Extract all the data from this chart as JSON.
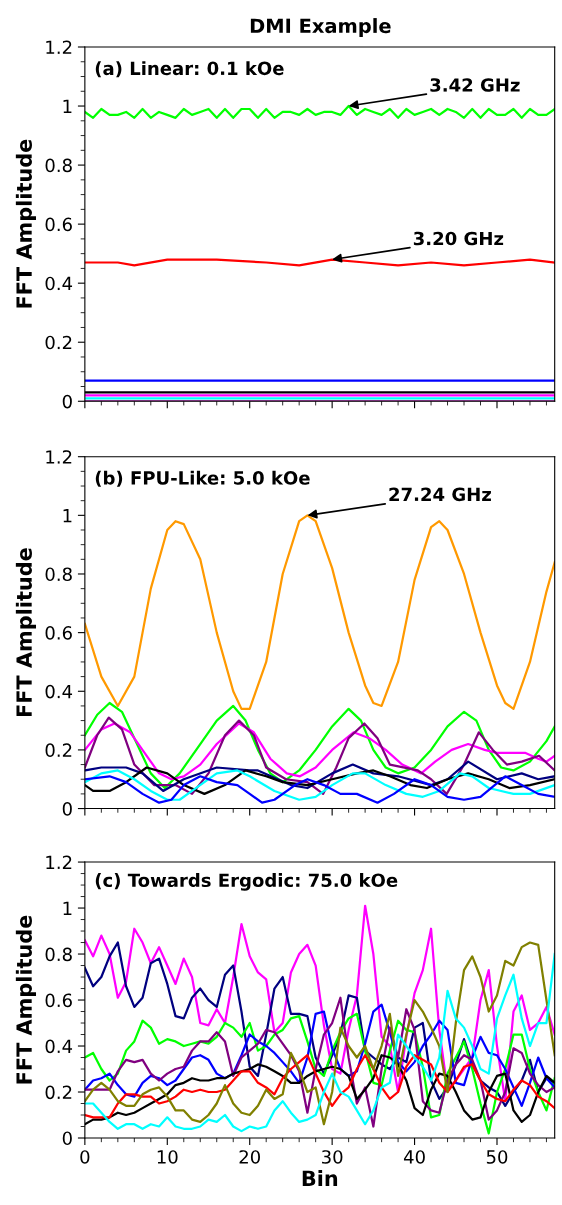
{
  "chart_data": [
    {
      "type": "line",
      "title": "DMI Example",
      "subtitle": "(a) Linear: 0.1 kOe",
      "ylabel": "FFT Amplitude",
      "xlim": [
        0,
        57
      ],
      "xticks": [
        0,
        10,
        20,
        30,
        40,
        50
      ],
      "ylim": [
        0,
        1.2
      ],
      "yticks": [
        0,
        0.2,
        0.4,
        0.6,
        0.8,
        1,
        1.2
      ],
      "tick_labels": "y",
      "grid": false,
      "legend": false,
      "annotations": [
        {
          "text": "3.42 GHz",
          "x": 32,
          "y": 1.0
        },
        {
          "text": "3.20 GHz",
          "x": 30,
          "y": 0.48
        }
      ],
      "series": [
        {
          "color": "#00ff00",
          "x": [
            0,
            1,
            2,
            3,
            4,
            5,
            6,
            7,
            8,
            9,
            10,
            11,
            12,
            13,
            14,
            15,
            16,
            17,
            18,
            19,
            20,
            21,
            22,
            23,
            24,
            25,
            26,
            27,
            28,
            29,
            30,
            31,
            32,
            33,
            34,
            35,
            36,
            37,
            38,
            39,
            40,
            41,
            42,
            43,
            44,
            45,
            46,
            47,
            48,
            49,
            50,
            51,
            52,
            53,
            54,
            55,
            56,
            57
          ],
          "values": [
            0.98,
            0.96,
            0.99,
            0.97,
            0.97,
            0.98,
            0.96,
            0.99,
            0.96,
            0.98,
            0.97,
            0.96,
            0.99,
            0.97,
            0.98,
            0.99,
            0.96,
            0.99,
            0.96,
            0.99,
            0.99,
            0.96,
            0.99,
            0.96,
            0.98,
            0.98,
            0.97,
            0.99,
            0.97,
            0.98,
            0.98,
            0.97,
            1.0,
            0.97,
            0.99,
            0.98,
            0.97,
            0.99,
            0.96,
            0.99,
            0.97,
            0.98,
            0.99,
            0.97,
            0.99,
            0.98,
            0.96,
            0.99,
            0.96,
            0.99,
            0.97,
            0.97,
            0.99,
            0.96,
            0.99,
            0.97,
            0.97,
            0.99
          ]
        },
        {
          "color": "#ff0000",
          "x": [
            0,
            4,
            6,
            10,
            16,
            22,
            26,
            30,
            34,
            38,
            42,
            46,
            50,
            54,
            57
          ],
          "values": [
            0.47,
            0.47,
            0.46,
            0.48,
            0.48,
            0.47,
            0.46,
            0.48,
            0.47,
            0.46,
            0.47,
            0.46,
            0.47,
            0.48,
            0.47
          ]
        },
        {
          "color": "#0000ff",
          "x": [
            0,
            57
          ],
          "values": [
            0.07,
            0.07
          ]
        },
        {
          "color": "#000000",
          "x": [
            0,
            57
          ],
          "values": [
            0.03,
            0.03
          ]
        },
        {
          "color": "#ff00ff",
          "x": [
            0,
            57
          ],
          "values": [
            0.02,
            0.02
          ]
        },
        {
          "color": "#00ffff",
          "x": [
            0,
            57
          ],
          "values": [
            0.01,
            0.01
          ]
        },
        {
          "color": "#800080",
          "x": [
            0,
            57
          ],
          "values": [
            0.0,
            0.0
          ]
        }
      ]
    },
    {
      "type": "line",
      "subtitle": "(b) FPU-Like: 5.0 kOe",
      "ylabel": "FFT Amplitude",
      "xlim": [
        0,
        57
      ],
      "xticks": [
        0,
        10,
        20,
        30,
        40,
        50
      ],
      "ylim": [
        0,
        1.2
      ],
      "yticks": [
        0,
        0.2,
        0.4,
        0.6,
        0.8,
        1,
        1.2
      ],
      "tick_labels": "y",
      "grid": false,
      "legend": false,
      "annotations": [
        {
          "text": "27.24 GHz",
          "x": 27,
          "y": 1.0
        }
      ],
      "series": [
        {
          "color": "#ff9900",
          "x": [
            0,
            2,
            4,
            6,
            8,
            10,
            11,
            12,
            14,
            16,
            18,
            19,
            20,
            22,
            24,
            26,
            27,
            28,
            30,
            32,
            34,
            35,
            36,
            38,
            40,
            42,
            43,
            44,
            46,
            48,
            50,
            51,
            52,
            54,
            56,
            57
          ],
          "values": [
            0.63,
            0.45,
            0.35,
            0.45,
            0.75,
            0.95,
            0.98,
            0.97,
            0.85,
            0.6,
            0.4,
            0.34,
            0.34,
            0.5,
            0.8,
            0.98,
            1.0,
            0.98,
            0.82,
            0.6,
            0.42,
            0.36,
            0.35,
            0.5,
            0.78,
            0.96,
            0.98,
            0.95,
            0.8,
            0.6,
            0.42,
            0.36,
            0.34,
            0.5,
            0.74,
            0.84
          ]
        },
        {
          "color": "#00ff00",
          "x": [
            0,
            1.5,
            3,
            4.5,
            6,
            8,
            9.7,
            11.5,
            14,
            16,
            18,
            19.5,
            21,
            22.5,
            24,
            26,
            28,
            30,
            32,
            33.5,
            35,
            36.5,
            38,
            40,
            42,
            44,
            46,
            47.5,
            49,
            50.5,
            52,
            54,
            56,
            57
          ],
          "values": [
            0.25,
            0.32,
            0.36,
            0.33,
            0.24,
            0.12,
            0.07,
            0.12,
            0.22,
            0.3,
            0.35,
            0.3,
            0.2,
            0.12,
            0.09,
            0.13,
            0.2,
            0.28,
            0.34,
            0.3,
            0.2,
            0.14,
            0.12,
            0.14,
            0.2,
            0.28,
            0.33,
            0.3,
            0.2,
            0.14,
            0.13,
            0.16,
            0.23,
            0.28
          ]
        },
        {
          "color": "#ff00ff",
          "x": [
            0,
            2,
            3.6,
            5.5,
            7.5,
            9,
            10.5,
            12,
            14,
            16,
            18.7,
            20.5,
            22.5,
            24.5,
            26.1,
            28,
            30,
            32.6,
            34.5,
            36.5,
            38.5,
            40.8,
            42.5,
            44.5,
            46.5,
            48.5,
            50,
            52,
            53.4,
            55,
            56,
            57
          ],
          "values": [
            0.2,
            0.27,
            0.29,
            0.26,
            0.18,
            0.12,
            0.1,
            0.11,
            0.15,
            0.22,
            0.29,
            0.26,
            0.17,
            0.12,
            0.11,
            0.14,
            0.2,
            0.26,
            0.24,
            0.2,
            0.15,
            0.12,
            0.16,
            0.2,
            0.22,
            0.2,
            0.19,
            0.19,
            0.19,
            0.17,
            0.16,
            0.18
          ]
        },
        {
          "color": "#800080",
          "x": [
            0,
            1.5,
            2.9,
            4.5,
            6,
            8.4,
            11,
            13,
            15,
            17,
            18.7,
            20.5,
            22,
            24.4,
            27,
            28.9,
            30.5,
            32,
            33.9,
            35.5,
            37,
            40.4,
            42,
            43.9,
            46,
            47.8,
            49.5,
            51.2,
            53,
            55.1,
            57
          ],
          "values": [
            0.14,
            0.25,
            0.31,
            0.27,
            0.15,
            0.08,
            0.08,
            0.05,
            0.12,
            0.25,
            0.3,
            0.25,
            0.14,
            0.1,
            0.09,
            0.05,
            0.14,
            0.24,
            0.29,
            0.24,
            0.15,
            0.13,
            0.1,
            0.05,
            0.15,
            0.26,
            0.2,
            0.15,
            0.16,
            0.18,
            0.13
          ]
        },
        {
          "color": "#000080",
          "x": [
            0,
            2,
            5,
            7,
            9.5,
            12,
            16,
            20,
            21,
            25,
            27,
            30,
            32.5,
            35,
            38,
            42,
            44,
            46.5,
            50,
            53,
            55,
            57
          ],
          "values": [
            0.13,
            0.14,
            0.14,
            0.12,
            0.06,
            0.1,
            0.14,
            0.13,
            0.13,
            0.08,
            0.07,
            0.12,
            0.15,
            0.12,
            0.11,
            0.08,
            0.1,
            0.16,
            0.1,
            0.12,
            0.1,
            0.11
          ]
        },
        {
          "color": "#000000",
          "x": [
            0,
            1,
            3,
            5,
            7.5,
            10,
            12,
            14.5,
            17,
            19.5,
            22,
            24,
            27,
            30,
            33,
            35,
            37,
            39.5,
            41.5,
            44,
            46.5,
            49,
            51.5,
            54,
            57
          ],
          "values": [
            0.08,
            0.06,
            0.06,
            0.09,
            0.14,
            0.12,
            0.08,
            0.05,
            0.08,
            0.13,
            0.11,
            0.09,
            0.08,
            0.1,
            0.12,
            0.13,
            0.11,
            0.08,
            0.07,
            0.1,
            0.12,
            0.1,
            0.07,
            0.08,
            0.1
          ]
        },
        {
          "color": "#00ffff",
          "x": [
            0,
            2,
            4,
            6,
            8,
            10,
            11.5,
            13,
            16,
            18.5,
            20,
            23,
            26,
            28,
            30,
            32.5,
            34,
            36.5,
            39,
            41,
            43,
            45.5,
            47,
            49,
            52,
            54,
            57
          ],
          "values": [
            0.09,
            0.12,
            0.13,
            0.1,
            0.06,
            0.03,
            0.03,
            0.06,
            0.12,
            0.13,
            0.11,
            0.06,
            0.03,
            0.04,
            0.08,
            0.12,
            0.12,
            0.08,
            0.05,
            0.04,
            0.06,
            0.12,
            0.11,
            0.07,
            0.05,
            0.05,
            0.08
          ]
        },
        {
          "color": "#0000ff",
          "x": [
            0,
            3,
            5,
            7,
            9,
            10.5,
            12,
            14,
            16,
            18.5,
            20,
            21.5,
            23,
            25.5,
            27,
            29,
            31,
            33,
            35.5,
            37.5,
            40,
            42,
            44,
            46,
            48,
            51,
            53,
            55,
            57
          ],
          "values": [
            0.1,
            0.11,
            0.09,
            0.05,
            0.02,
            0.03,
            0.08,
            0.11,
            0.09,
            0.08,
            0.05,
            0.02,
            0.03,
            0.08,
            0.1,
            0.08,
            0.05,
            0.05,
            0.02,
            0.05,
            0.1,
            0.08,
            0.04,
            0.03,
            0.04,
            0.11,
            0.08,
            0.05,
            0.04
          ]
        }
      ]
    },
    {
      "type": "line",
      "subtitle": "(c) Towards Ergodic: 75.0 kOe",
      "xlabel": "Bin",
      "ylabel": "FFT Amplitude",
      "xlim": [
        0,
        57
      ],
      "xticks": [
        0,
        10,
        20,
        30,
        40,
        50
      ],
      "ylim": [
        0,
        1.2
      ],
      "yticks": [
        0,
        0.2,
        0.4,
        0.6,
        0.8,
        1,
        1.2
      ],
      "grid": false,
      "legend": false,
      "x": [
        0,
        1,
        2,
        3,
        4,
        5,
        6,
        7,
        8,
        9,
        10,
        11,
        12,
        13,
        14,
        15,
        16,
        17,
        18,
        19,
        20,
        21,
        22,
        23,
        24,
        25,
        26,
        27,
        28,
        29,
        30,
        31,
        32,
        33,
        34,
        35,
        36,
        37,
        38,
        39,
        40,
        41,
        42,
        43,
        44,
        45,
        46,
        47,
        48,
        49,
        50,
        51,
        52,
        53,
        54,
        55,
        56,
        57
      ],
      "series": [
        {
          "color": "#ff00ff",
          "values": [
            0.86,
            0.79,
            0.88,
            0.8,
            0.61,
            0.68,
            0.91,
            0.85,
            0.76,
            0.83,
            0.75,
            0.67,
            0.78,
            0.7,
            0.5,
            0.49,
            0.56,
            0.5,
            0.7,
            0.93,
            0.79,
            0.72,
            0.69,
            0.46,
            0.5,
            0.72,
            0.8,
            0.84,
            0.75,
            0.49,
            0.3,
            0.28,
            0.47,
            0.62,
            1.01,
            0.8,
            0.44,
            0.4,
            0.2,
            0.44,
            0.63,
            0.73,
            0.91,
            0.47,
            0.21,
            0.25,
            0.3,
            0.35,
            0.6,
            0.73,
            0.4,
            0.16,
            0.55,
            0.62,
            0.47,
            0.5,
            0.57,
            0.45
          ]
        },
        {
          "color": "#000080",
          "values": [
            0.74,
            0.66,
            0.7,
            0.79,
            0.85,
            0.66,
            0.57,
            0.61,
            0.76,
            0.78,
            0.67,
            0.53,
            0.52,
            0.61,
            0.65,
            0.6,
            0.57,
            0.71,
            0.75,
            0.55,
            0.31,
            0.27,
            0.45,
            0.65,
            0.7,
            0.54,
            0.54,
            0.53,
            0.35,
            0.28,
            0.36,
            0.45,
            0.62,
            0.61,
            0.38,
            0.35,
            0.32,
            0.3,
            0.35,
            0.33,
            0.48,
            0.5,
            0.25,
            0.17,
            0.22,
            0.32,
            0.43,
            0.32,
            0.25,
            0.22,
            0.2,
            0.14,
            0.2,
            0.25,
            0.34,
            0.2,
            0.26,
            0.24
          ]
        },
        {
          "color": "#00ff00",
          "values": [
            0.35,
            0.37,
            0.3,
            0.25,
            0.28,
            0.38,
            0.42,
            0.51,
            0.48,
            0.41,
            0.43,
            0.42,
            0.4,
            0.41,
            0.42,
            0.41,
            0.44,
            0.5,
            0.48,
            0.44,
            0.5,
            0.38,
            0.4,
            0.45,
            0.47,
            0.52,
            0.53,
            0.42,
            0.3,
            0.27,
            0.38,
            0.46,
            0.52,
            0.54,
            0.38,
            0.24,
            0.23,
            0.38,
            0.51,
            0.47,
            0.46,
            0.31,
            0.09,
            0.1,
            0.28,
            0.35,
            0.42,
            0.3,
            0.15,
            0.02,
            0.2,
            0.3,
            0.45,
            0.45,
            0.3,
            0.2,
            0.12,
            0.26
          ]
        },
        {
          "color": "#0000ff",
          "values": [
            0.21,
            0.25,
            0.26,
            0.28,
            0.23,
            0.19,
            0.18,
            0.24,
            0.27,
            0.26,
            0.23,
            0.25,
            0.3,
            0.35,
            0.36,
            0.34,
            0.28,
            0.26,
            0.28,
            0.36,
            0.45,
            0.42,
            0.4,
            0.37,
            0.33,
            0.29,
            0.24,
            0.35,
            0.54,
            0.55,
            0.39,
            0.3,
            0.27,
            0.29,
            0.41,
            0.55,
            0.58,
            0.46,
            0.33,
            0.29,
            0.33,
            0.4,
            0.45,
            0.51,
            0.47,
            0.24,
            0.23,
            0.35,
            0.44,
            0.37,
            0.36,
            0.3,
            0.22,
            0.14,
            0.24,
            0.35,
            0.26,
            0.22
          ]
        },
        {
          "color": "#800080",
          "values": [
            0.21,
            0.21,
            0.21,
            0.21,
            0.29,
            0.34,
            0.33,
            0.34,
            0.28,
            0.25,
            0.28,
            0.3,
            0.31,
            0.38,
            0.42,
            0.42,
            0.46,
            0.42,
            0.27,
            0.35,
            0.38,
            0.41,
            0.47,
            0.46,
            0.41,
            0.36,
            0.29,
            0.11,
            0.3,
            0.45,
            0.5,
            0.61,
            0.35,
            0.15,
            0.22,
            0.05,
            0.3,
            0.48,
            0.35,
            0.56,
            0.47,
            0.16,
            0.12,
            0.11,
            0.25,
            0.32,
            0.36,
            0.34,
            0.25,
            0.08,
            0.12,
            0.2,
            0.39,
            0.37,
            0.28,
            0.23,
            0.2,
            0.22
          ]
        },
        {
          "color": "#000000",
          "values": [
            0.06,
            0.08,
            0.08,
            0.09,
            0.11,
            0.1,
            0.11,
            0.13,
            0.15,
            0.17,
            0.19,
            0.23,
            0.24,
            0.26,
            0.25,
            0.25,
            0.26,
            0.26,
            0.28,
            0.29,
            0.3,
            0.32,
            0.31,
            0.29,
            0.27,
            0.24,
            0.24,
            0.27,
            0.29,
            0.3,
            0.31,
            0.3,
            0.27,
            0.17,
            0.21,
            0.26,
            0.36,
            0.35,
            0.32,
            0.25,
            0.13,
            0.1,
            0.21,
            0.28,
            0.27,
            0.2,
            0.12,
            0.08,
            0.09,
            0.2,
            0.27,
            0.28,
            0.12,
            0.07,
            0.1,
            0.2,
            0.27,
            0.24
          ]
        },
        {
          "color": "#ff0000",
          "values": [
            0.1,
            0.09,
            0.09,
            0.09,
            0.15,
            0.19,
            0.19,
            0.18,
            0.18,
            0.15,
            0.16,
            0.18,
            0.21,
            0.2,
            0.21,
            0.2,
            0.2,
            0.21,
            0.25,
            0.29,
            0.29,
            0.24,
            0.22,
            0.19,
            0.26,
            0.3,
            0.33,
            0.36,
            0.28,
            0.2,
            0.14,
            0.19,
            0.22,
            0.3,
            0.36,
            0.3,
            0.22,
            0.17,
            0.2,
            0.31,
            0.36,
            0.34,
            0.32,
            0.24,
            0.2,
            0.25,
            0.31,
            0.32,
            0.25,
            0.19,
            0.17,
            0.16,
            0.21,
            0.25,
            0.23,
            0.18,
            0.16,
            0.13
          ]
        },
        {
          "color": "#808000",
          "values": [
            0.16,
            0.21,
            0.24,
            0.21,
            0.16,
            0.14,
            0.14,
            0.19,
            0.21,
            0.22,
            0.18,
            0.12,
            0.12,
            0.08,
            0.07,
            0.1,
            0.15,
            0.23,
            0.15,
            0.11,
            0.1,
            0.14,
            0.21,
            0.17,
            0.19,
            0.37,
            0.3,
            0.2,
            0.22,
            0.06,
            0.2,
            0.48,
            0.4,
            0.35,
            0.4,
            0.3,
            0.4,
            0.54,
            0.27,
            0.45,
            0.6,
            0.55,
            0.48,
            0.4,
            0.2,
            0.5,
            0.73,
            0.79,
            0.7,
            0.55,
            0.62,
            0.77,
            0.75,
            0.83,
            0.85,
            0.84,
            0.6,
            0.36
          ]
        },
        {
          "color": "#00ffff",
          "values": [
            0.15,
            0.15,
            0.11,
            0.07,
            0.04,
            0.06,
            0.06,
            0.04,
            0.06,
            0.05,
            0.09,
            0.05,
            0.04,
            0.04,
            0.05,
            0.08,
            0.07,
            0.1,
            0.05,
            0.03,
            0.05,
            0.04,
            0.05,
            0.12,
            0.16,
            0.11,
            0.07,
            0.08,
            0.1,
            0.2,
            0.28,
            0.2,
            0.18,
            0.12,
            0.06,
            0.12,
            0.22,
            0.24,
            0.45,
            0.4,
            0.35,
            0.31,
            0.25,
            0.35,
            0.64,
            0.52,
            0.48,
            0.4,
            0.3,
            0.28,
            0.52,
            0.62,
            0.71,
            0.52,
            0.4,
            0.5,
            0.5,
            0.8
          ]
        }
      ]
    }
  ]
}
